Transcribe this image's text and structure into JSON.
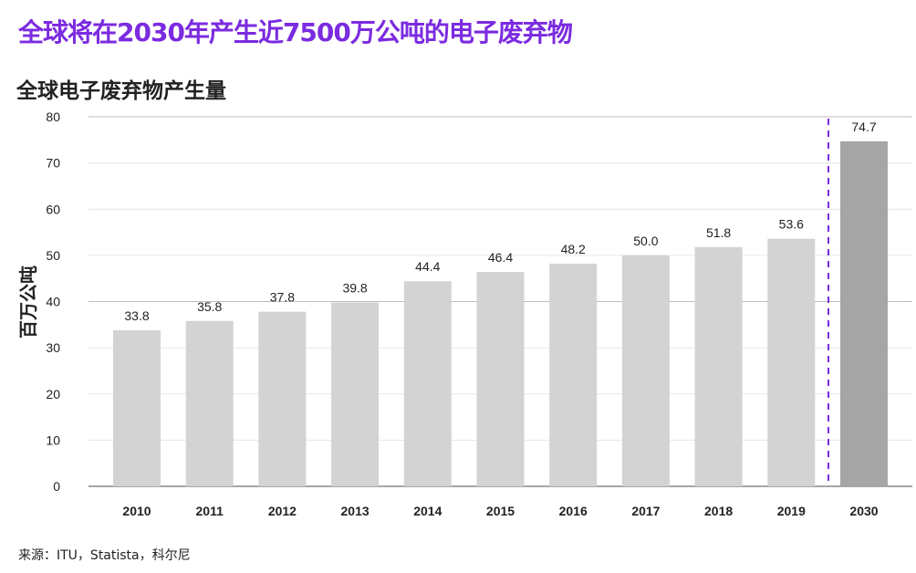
{
  "title": "全球将在2030年产生近7500万公吨的电子废弃物",
  "source": "来源：ITU，Statista，科尔尼",
  "colors": {
    "title": "#7b2be0",
    "bar": "#d3d3d3",
    "bar_projected": "#a6a6a6",
    "divider": "#7b2be0"
  },
  "chart_data": {
    "type": "bar",
    "title": "全球电子废弃物产生量",
    "xlabel": "",
    "ylabel": "百万公吨",
    "ylim": [
      0,
      80
    ],
    "yticks": [
      0,
      10,
      20,
      30,
      40,
      50,
      60,
      70,
      80
    ],
    "categories": [
      "2010",
      "2011",
      "2012",
      "2013",
      "2014",
      "2015",
      "2016",
      "2017",
      "2018",
      "2019",
      "2030"
    ],
    "values": [
      33.8,
      35.8,
      37.8,
      39.8,
      44.4,
      46.4,
      48.2,
      50.0,
      51.8,
      53.6,
      74.7
    ],
    "labels": [
      "33.8",
      "35.8",
      "37.8",
      "39.8",
      "44.4",
      "46.4",
      "48.2",
      "50.0",
      "51.8",
      "53.6",
      "74.7"
    ],
    "projected": [
      "2030"
    ],
    "grid": true
  }
}
